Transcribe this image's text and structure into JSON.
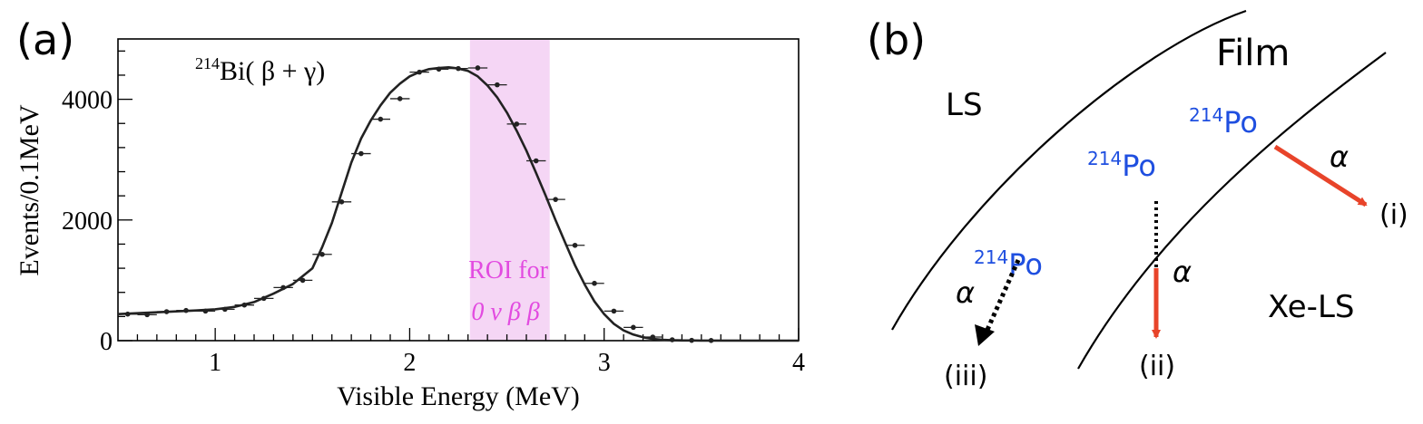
{
  "panel_a": {
    "label": "(a)",
    "title_sup": "214",
    "title_main": "Bi( β + γ)",
    "roi_line1": "ROI for",
    "roi_line2": "0 ν  β β",
    "colors": {
      "roi_band": "#f5d6f5",
      "roi_text": "#e24be0",
      "curve": "#222222"
    }
  },
  "chart_data": {
    "type": "scatter",
    "title": "214Bi( β + γ)",
    "xlabel": "Visible Energy (MeV)",
    "ylabel": "Events/0.1MeV",
    "xlim": [
      0.5,
      4.0
    ],
    "ylim": [
      0,
      5000
    ],
    "xticks": [
      1,
      2,
      3,
      4
    ],
    "yticks": [
      0,
      2000,
      4000
    ],
    "xtick_labels": [
      "1",
      "2",
      "3",
      "4"
    ],
    "ytick_labels": [
      "0",
      "2000",
      "4000"
    ],
    "roi_band": [
      2.31,
      2.72
    ],
    "series": [
      {
        "x": [
          0.55,
          0.65,
          0.75,
          0.85,
          0.95,
          1.05,
          1.15,
          1.25,
          1.35,
          1.45,
          1.55,
          1.65,
          1.75,
          1.85,
          1.95,
          2.05,
          2.15,
          2.25,
          2.35,
          2.45,
          2.55,
          2.65,
          2.75,
          2.85,
          2.95,
          3.05,
          3.15,
          3.25,
          3.35,
          3.45,
          3.55
        ],
        "y": [
          440,
          430,
          480,
          500,
          490,
          520,
          590,
          700,
          880,
          1000,
          1430,
          2300,
          3100,
          3670,
          4010,
          4450,
          4500,
          4510,
          4520,
          4240,
          3590,
          2980,
          2340,
          1580,
          950,
          490,
          220,
          60,
          15,
          5,
          3
        ]
      }
    ],
    "fit_curve": {
      "x": [
        0.5,
        0.7,
        0.9,
        1.0,
        1.1,
        1.2,
        1.3,
        1.4,
        1.5,
        1.55,
        1.6,
        1.65,
        1.7,
        1.75,
        1.8,
        1.85,
        1.9,
        1.95,
        2.0,
        2.05,
        2.1,
        2.15,
        2.2,
        2.25,
        2.3,
        2.35,
        2.4,
        2.45,
        2.5,
        2.55,
        2.6,
        2.65,
        2.7,
        2.75,
        2.8,
        2.85,
        2.9,
        2.95,
        3.0,
        3.05,
        3.1,
        3.15,
        3.2,
        3.25,
        3.3,
        3.35,
        3.4,
        3.5,
        4.0
      ],
      "y": [
        440,
        470,
        500,
        520,
        560,
        640,
        780,
        940,
        1200,
        1550,
        1950,
        2450,
        2950,
        3350,
        3650,
        3900,
        4110,
        4260,
        4380,
        4450,
        4500,
        4520,
        4530,
        4510,
        4470,
        4380,
        4230,
        4030,
        3780,
        3480,
        3150,
        2780,
        2400,
        2000,
        1620,
        1250,
        930,
        650,
        440,
        280,
        170,
        100,
        55,
        28,
        14,
        6,
        3,
        1,
        0
      ]
    }
  },
  "panel_b": {
    "label": "(b)",
    "film_label": "Film",
    "ls_label": "LS",
    "xels_label": "Xe-LS",
    "po_sup": "214",
    "po_main": "Po",
    "alpha": "α",
    "case_i": "(i)",
    "case_ii": "(ii)",
    "case_iii": "(iii)",
    "colors": {
      "isotope": "#1f4fe0",
      "arrow": "#e8442a",
      "line": "#000000"
    }
  }
}
